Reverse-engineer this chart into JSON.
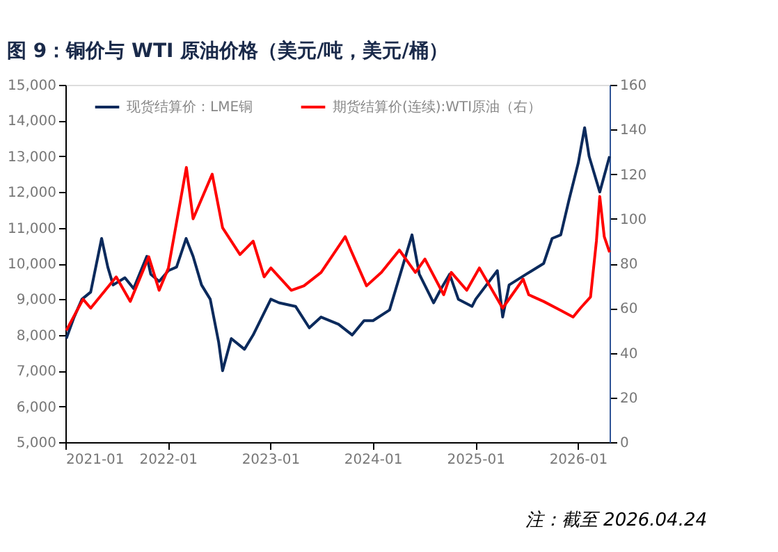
{
  "chart_data": {
    "type": "line",
    "title": "图 9：铜价与 WTI 原油价格（美元/吨，美元/桶）",
    "annotations": [
      "注：截至 2026.04.24"
    ],
    "xlim": [
      "2021-01-01",
      "2026-04-24"
    ],
    "xticks": [
      {
        "value": "2021-01-01",
        "label": "2021-01"
      },
      {
        "value": "2022-01-01",
        "label": "2022-01"
      },
      {
        "value": "2023-01-01",
        "label": "2023-01"
      },
      {
        "value": "2024-01-01",
        "label": "2024-01"
      },
      {
        "value": "2025-01-01",
        "label": "2025-01"
      },
      {
        "value": "2026-01-01",
        "label": "2026-01"
      }
    ],
    "ylim": [
      5000,
      15000
    ],
    "yticks": [
      {
        "value": 5000,
        "label": "5,000"
      },
      {
        "value": 6000,
        "label": "6,000"
      },
      {
        "value": 7000,
        "label": "7,000"
      },
      {
        "value": 8000,
        "label": "8,000"
      },
      {
        "value": 9000,
        "label": "9,000"
      },
      {
        "value": 10000,
        "label": "10,000"
      },
      {
        "value": 11000,
        "label": "11,000"
      },
      {
        "value": 12000,
        "label": "12,000"
      },
      {
        "value": 13000,
        "label": "13,000"
      },
      {
        "value": 14000,
        "label": "14,000"
      },
      {
        "value": 15000,
        "label": "15,000"
      }
    ],
    "y2lim": [
      0,
      160
    ],
    "y2ticks": [
      0,
      20,
      40,
      60,
      80,
      100,
      120,
      140,
      160
    ],
    "grid": false,
    "legend": "top",
    "line_style": "solid",
    "marker": "none",
    "series": [
      {
        "name": "现货结算价：LME铜",
        "color": "#0b2a5c",
        "x": [
          "2021-01-04",
          "2021-02-01",
          "2021-03-01",
          "2021-04-01",
          "2021-05-10",
          "2021-06-01",
          "2021-06-20",
          "2021-08-01",
          "2021-09-01",
          "2021-10-18",
          "2021-11-01",
          "2021-12-01",
          "2022-01-03",
          "2022-02-01",
          "2022-03-07",
          "2022-04-01",
          "2022-05-01",
          "2022-06-01",
          "2022-07-01",
          "2022-07-15",
          "2022-08-15",
          "2022-10-01",
          "2022-11-01",
          "2023-01-03",
          "2023-02-01",
          "2023-04-01",
          "2023-05-20",
          "2023-07-01",
          "2023-09-01",
          "2023-10-20",
          "2023-12-01",
          "2024-01-02",
          "2024-03-01",
          "2024-05-20",
          "2024-06-15",
          "2024-08-05",
          "2024-09-01",
          "2024-10-01",
          "2024-11-01",
          "2024-12-20",
          "2025-01-02",
          "2025-03-20",
          "2025-04-08",
          "2025-05-01",
          "2025-07-01",
          "2025-09-01",
          "2025-10-01",
          "2025-11-01",
          "2025-12-01",
          "2026-01-02",
          "2026-01-25",
          "2026-02-10",
          "2026-03-01",
          "2026-03-20",
          "2026-04-24"
        ],
        "values": [
          7900,
          8500,
          9000,
          9200,
          10700,
          9900,
          9400,
          9600,
          9300,
          10200,
          9700,
          9500,
          9800,
          9900,
          10700,
          10200,
          9400,
          9000,
          7800,
          7000,
          7900,
          7600,
          8000,
          9000,
          8900,
          8800,
          8200,
          8500,
          8300,
          8000,
          8400,
          8400,
          8700,
          10800,
          9700,
          8900,
          9300,
          9700,
          9000,
          8800,
          9000,
          9800,
          8500,
          9400,
          9700,
          10000,
          10700,
          10800,
          11800,
          12800,
          13800,
          13000,
          12500,
          12000,
          13000
        ]
      },
      {
        "name": "期货结算价(连续):WTI原油（右）",
        "color": "#ff0000",
        "axis": "y2",
        "x": [
          "2021-01-04",
          "2021-03-05",
          "2021-04-01",
          "2021-07-01",
          "2021-08-20",
          "2021-10-25",
          "2021-12-01",
          "2022-01-03",
          "2022-03-08",
          "2022-04-01",
          "2022-06-08",
          "2022-07-15",
          "2022-09-15",
          "2022-11-01",
          "2022-12-10",
          "2023-01-03",
          "2023-03-17",
          "2023-05-01",
          "2023-07-01",
          "2023-09-25",
          "2023-10-15",
          "2023-12-10",
          "2024-02-01",
          "2024-04-05",
          "2024-06-01",
          "2024-07-05",
          "2024-09-10",
          "2024-10-07",
          "2024-12-01",
          "2025-01-15",
          "2025-04-08",
          "2025-06-20",
          "2025-07-10",
          "2025-09-01",
          "2025-11-01",
          "2025-12-15",
          "2026-01-10",
          "2026-02-15",
          "2026-03-08",
          "2026-03-20",
          "2026-04-05",
          "2026-04-24"
        ],
        "values": [
          50,
          64,
          60,
          74,
          63,
          83,
          68,
          78,
          123,
          100,
          120,
          96,
          84,
          90,
          74,
          78,
          68,
          70,
          76,
          92,
          86,
          70,
          76,
          86,
          76,
          82,
          66,
          76,
          68,
          78,
          60,
          73,
          66,
          63,
          59,
          56,
          60,
          65,
          90,
          110,
          92,
          85
        ]
      }
    ]
  }
}
